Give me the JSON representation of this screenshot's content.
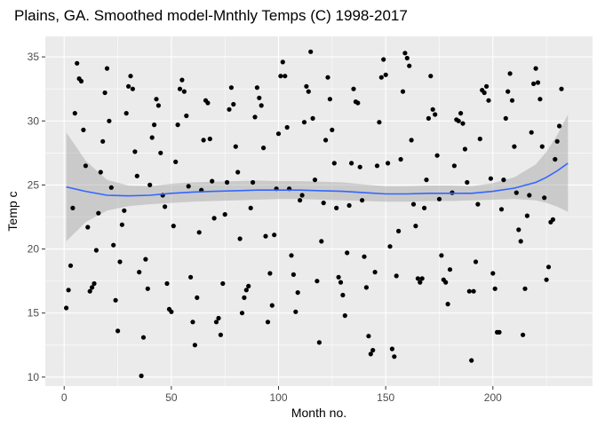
{
  "chart_data": {
    "type": "scatter",
    "title": "Plains, GA. Smoothed model-Mnthly Temps (C) 1998-2017",
    "xlabel": "Month no.",
    "ylabel": "Temp c",
    "xlim": [
      -8.8,
      246.5
    ],
    "ylim": [
      9.3,
      36.6
    ],
    "x_ticks": [
      0,
      50,
      100,
      150,
      200
    ],
    "y_ticks": [
      10,
      15,
      20,
      25,
      30,
      35
    ],
    "x_tick_labels": [
      "0",
      "50",
      "100",
      "150",
      "200"
    ],
    "y_tick_labels": [
      "10",
      "15",
      "20",
      "25",
      "30",
      "35"
    ],
    "grid": true,
    "legend": "none",
    "colors": {
      "panel": "#ebebeb",
      "grid": "#ffffff",
      "points": "#000000",
      "smooth_line": "#3366ff",
      "ribbon": "#999999"
    },
    "series": [
      {
        "type": "scatter",
        "points": [
          [
            1,
            15.4
          ],
          [
            2,
            16.8
          ],
          [
            3,
            18.7
          ],
          [
            4,
            23.2
          ],
          [
            5,
            30.6
          ],
          [
            6,
            34.5
          ],
          [
            7,
            33.3
          ],
          [
            8,
            33.1
          ],
          [
            9,
            29.3
          ],
          [
            10,
            26.5
          ],
          [
            11,
            21.7
          ],
          [
            12,
            16.7
          ],
          [
            13,
            17.0
          ],
          [
            14,
            17.3
          ],
          [
            15,
            19.9
          ],
          [
            16,
            22.8
          ],
          [
            17,
            26.0
          ],
          [
            18,
            28.4
          ],
          [
            19,
            32.2
          ],
          [
            20,
            34.1
          ],
          [
            21,
            30.0
          ],
          [
            22,
            24.8
          ],
          [
            23,
            20.3
          ],
          [
            24,
            16.0
          ],
          [
            25,
            13.6
          ],
          [
            26,
            19.0
          ],
          [
            27,
            21.9
          ],
          [
            28,
            23.0
          ],
          [
            29,
            30.6
          ],
          [
            30,
            32.7
          ],
          [
            31,
            33.5
          ],
          [
            32,
            32.5
          ],
          [
            33,
            27.6
          ],
          [
            34,
            25.7
          ],
          [
            35,
            18.2
          ],
          [
            36,
            10.1
          ],
          [
            37,
            13.1
          ],
          [
            38,
            19.2
          ],
          [
            39,
            16.9
          ],
          [
            40,
            25.0
          ],
          [
            41,
            28.7
          ],
          [
            42,
            29.7
          ],
          [
            43,
            31.7
          ],
          [
            44,
            31.2
          ],
          [
            45,
            27.5
          ],
          [
            46,
            24.2
          ],
          [
            47,
            23.3
          ],
          [
            48,
            17.3
          ],
          [
            49,
            15.3
          ],
          [
            50,
            15.1
          ],
          [
            51,
            21.8
          ],
          [
            52,
            26.8
          ],
          [
            53,
            29.7
          ],
          [
            54,
            32.5
          ],
          [
            55,
            33.2
          ],
          [
            56,
            32.3
          ],
          [
            57,
            30.4
          ],
          [
            58,
            24.9
          ],
          [
            59,
            17.8
          ],
          [
            60,
            14.3
          ],
          [
            61,
            12.5
          ],
          [
            62,
            16.2
          ],
          [
            63,
            21.3
          ],
          [
            64,
            24.6
          ],
          [
            65,
            28.5
          ],
          [
            66,
            31.6
          ],
          [
            67,
            31.4
          ],
          [
            68,
            28.6
          ],
          [
            69,
            25.3
          ],
          [
            70,
            22.4
          ],
          [
            71,
            14.3
          ],
          [
            72,
            14.6
          ],
          [
            73,
            13.3
          ],
          [
            74,
            17.3
          ],
          [
            75,
            22.7
          ],
          [
            76,
            25.2
          ],
          [
            77,
            30.9
          ],
          [
            78,
            32.6
          ],
          [
            79,
            31.3
          ],
          [
            80,
            28.0
          ],
          [
            81,
            26.0
          ],
          [
            82,
            20.8
          ],
          [
            83,
            15.0
          ],
          [
            84,
            16.2
          ],
          [
            85,
            16.8
          ],
          [
            86,
            17.1
          ],
          [
            87,
            23.2
          ],
          [
            88,
            25.2
          ],
          [
            89,
            30.3
          ],
          [
            90,
            32.6
          ],
          [
            91,
            31.8
          ],
          [
            92,
            31.2
          ],
          [
            93,
            27.9
          ],
          [
            94,
            21.0
          ],
          [
            95,
            14.3
          ],
          [
            96,
            18.1
          ],
          [
            97,
            15.6
          ],
          [
            98,
            21.1
          ],
          [
            99,
            24.7
          ],
          [
            100,
            29.0
          ],
          [
            101,
            33.5
          ],
          [
            102,
            34.6
          ],
          [
            103,
            33.5
          ],
          [
            104,
            29.5
          ],
          [
            105,
            24.7
          ],
          [
            106,
            19.5
          ],
          [
            107,
            18.0
          ],
          [
            108,
            15.1
          ],
          [
            109,
            16.6
          ],
          [
            110,
            23.8
          ],
          [
            111,
            24.2
          ],
          [
            112,
            29.9
          ],
          [
            113,
            32.7
          ],
          [
            114,
            32.3
          ],
          [
            115,
            35.4
          ],
          [
            116,
            30.2
          ],
          [
            117,
            25.4
          ],
          [
            118,
            17.5
          ],
          [
            119,
            12.7
          ],
          [
            120,
            20.6
          ],
          [
            121,
            23.6
          ],
          [
            122,
            28.5
          ],
          [
            123,
            33.4
          ],
          [
            124,
            31.7
          ],
          [
            125,
            29.3
          ],
          [
            126,
            26.7
          ],
          [
            127,
            23.2
          ],
          [
            128,
            17.8
          ],
          [
            129,
            17.4
          ],
          [
            130,
            16.4
          ],
          [
            131,
            14.8
          ],
          [
            132,
            19.7
          ],
          [
            133,
            23.4
          ],
          [
            134,
            26.7
          ],
          [
            135,
            32.5
          ],
          [
            136,
            31.5
          ],
          [
            137,
            31.4
          ],
          [
            138,
            26.4
          ],
          [
            139,
            23.8
          ],
          [
            140,
            19.4
          ],
          [
            141,
            17.0
          ],
          [
            142,
            13.2
          ],
          [
            143,
            11.8
          ],
          [
            144,
            12.1
          ],
          [
            145,
            18.2
          ],
          [
            146,
            26.5
          ],
          [
            147,
            29.9
          ],
          [
            148,
            33.4
          ],
          [
            149,
            34.8
          ],
          [
            150,
            33.6
          ],
          [
            151,
            26.7
          ],
          [
            152,
            20.2
          ],
          [
            153,
            12.2
          ],
          [
            154,
            11.6
          ],
          [
            155,
            17.9
          ],
          [
            156,
            21.4
          ],
          [
            157,
            27.0
          ],
          [
            158,
            32.3
          ],
          [
            159,
            35.3
          ],
          [
            160,
            34.9
          ],
          [
            161,
            34.3
          ],
          [
            162,
            28.5
          ],
          [
            163,
            23.5
          ],
          [
            164,
            21.8
          ],
          [
            165,
            17.7
          ],
          [
            166,
            17.4
          ],
          [
            167,
            17.7
          ],
          [
            168,
            23.2
          ],
          [
            169,
            25.4
          ],
          [
            170,
            30.2
          ],
          [
            171,
            33.5
          ],
          [
            172,
            30.9
          ],
          [
            173,
            30.5
          ],
          [
            174,
            27.3
          ],
          [
            175,
            23.9
          ],
          [
            176,
            19.5
          ],
          [
            177,
            17.6
          ],
          [
            178,
            17.4
          ],
          [
            179,
            15.7
          ],
          [
            180,
            18.4
          ],
          [
            181,
            24.4
          ],
          [
            182,
            26.5
          ],
          [
            183,
            30.1
          ],
          [
            184,
            30.0
          ],
          [
            185,
            30.6
          ],
          [
            186,
            29.8
          ],
          [
            187,
            27.8
          ],
          [
            188,
            25.2
          ],
          [
            189,
            16.7
          ],
          [
            190,
            11.3
          ],
          [
            191,
            16.7
          ],
          [
            192,
            19.0
          ],
          [
            193,
            23.5
          ],
          [
            194,
            28.6
          ],
          [
            195,
            32.4
          ],
          [
            196,
            32.2
          ],
          [
            197,
            32.7
          ],
          [
            198,
            31.6
          ],
          [
            199,
            25.5
          ],
          [
            200,
            18.1
          ],
          [
            201,
            16.9
          ],
          [
            202,
            13.5
          ],
          [
            203,
            13.5
          ],
          [
            204,
            23.1
          ],
          [
            205,
            25.4
          ],
          [
            206,
            30.2
          ],
          [
            207,
            32.3
          ],
          [
            208,
            33.7
          ],
          [
            209,
            31.6
          ],
          [
            210,
            28.0
          ],
          [
            211,
            24.4
          ],
          [
            212,
            21.5
          ],
          [
            213,
            20.6
          ],
          [
            214,
            13.3
          ],
          [
            215,
            16.9
          ],
          [
            216,
            22.6
          ],
          [
            217,
            24.2
          ],
          [
            218,
            29.1
          ],
          [
            219,
            32.9
          ],
          [
            220,
            34.1
          ],
          [
            221,
            33.0
          ],
          [
            222,
            31.7
          ],
          [
            223,
            28.0
          ],
          [
            224,
            24.0
          ],
          [
            225,
            17.6
          ],
          [
            226,
            18.6
          ],
          [
            227,
            22.1
          ],
          [
            228,
            22.3
          ],
          [
            229,
            27.0
          ],
          [
            230,
            28.4
          ],
          [
            231,
            29.6
          ],
          [
            232,
            32.5
          ]
        ]
      },
      {
        "type": "smooth",
        "x": [
          1,
          10,
          20,
          30,
          40,
          50,
          60,
          70,
          80,
          90,
          100,
          110,
          120,
          130,
          140,
          150,
          160,
          170,
          180,
          190,
          200,
          210,
          220,
          225,
          230,
          235
        ],
        "y": [
          24.85,
          24.5,
          24.2,
          24.15,
          24.2,
          24.35,
          24.45,
          24.5,
          24.55,
          24.6,
          24.6,
          24.6,
          24.55,
          24.5,
          24.4,
          24.3,
          24.3,
          24.35,
          24.35,
          24.35,
          24.5,
          24.75,
          25.2,
          25.6,
          26.1,
          26.7
        ],
        "lower": [
          20.6,
          22.1,
          23.0,
          23.35,
          23.5,
          23.6,
          23.7,
          23.75,
          23.8,
          23.85,
          23.9,
          23.9,
          23.85,
          23.8,
          23.75,
          23.7,
          23.7,
          23.75,
          23.75,
          23.8,
          23.85,
          23.9,
          23.8,
          23.6,
          23.3,
          22.9
        ],
        "upper": [
          29.1,
          26.9,
          25.4,
          24.95,
          24.9,
          25.1,
          25.2,
          25.25,
          25.3,
          25.35,
          25.3,
          25.3,
          25.25,
          25.2,
          25.05,
          24.9,
          24.9,
          24.95,
          24.95,
          24.9,
          25.15,
          25.6,
          26.6,
          27.6,
          28.9,
          30.5
        ]
      }
    ]
  }
}
